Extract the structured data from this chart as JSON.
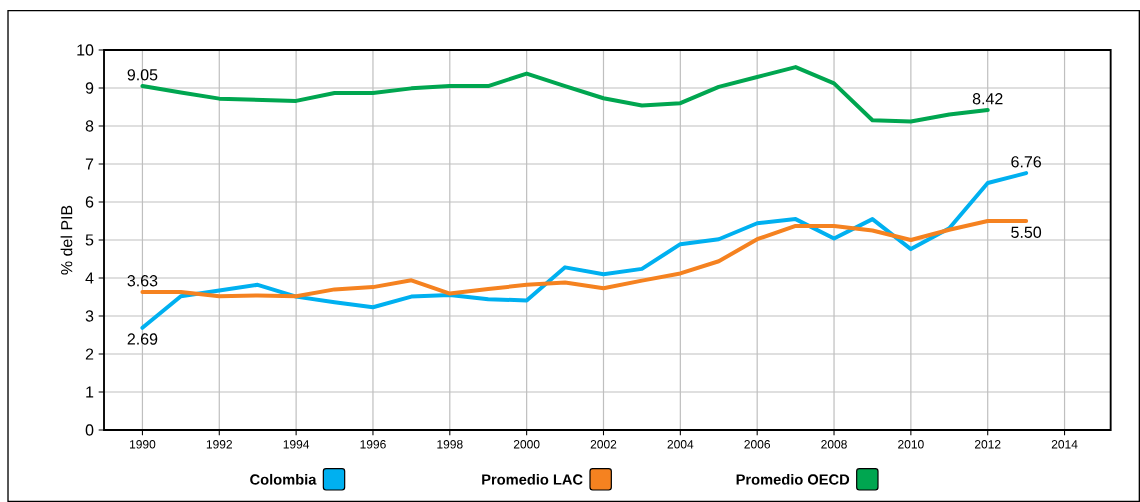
{
  "chart_data": {
    "type": "line",
    "ylabel": "% del PIB",
    "x": [
      1990,
      1991,
      1992,
      1993,
      1994,
      1995,
      1996,
      1997,
      1998,
      1999,
      2000,
      2001,
      2002,
      2003,
      2004,
      2005,
      2006,
      2007,
      2008,
      2009,
      2010,
      2011,
      2012,
      2013
    ],
    "series": [
      {
        "name": "Colombia",
        "color": "#00b0f0",
        "values": [
          2.69,
          3.52,
          3.67,
          3.82,
          3.51,
          3.36,
          3.23,
          3.51,
          3.55,
          3.44,
          3.41,
          4.28,
          4.1,
          4.24,
          4.89,
          5.02,
          5.44,
          5.55,
          5.04,
          5.55,
          4.76,
          5.31,
          6.5,
          6.76
        ]
      },
      {
        "name": "Promedio LAC",
        "color": "#f58220",
        "values": [
          3.63,
          3.63,
          3.52,
          3.54,
          3.52,
          3.7,
          3.76,
          3.94,
          3.59,
          3.71,
          3.82,
          3.88,
          3.73,
          3.93,
          4.12,
          4.44,
          5.02,
          5.37,
          5.37,
          5.25,
          5.0,
          5.27,
          5.5,
          5.5
        ]
      },
      {
        "name": "Promedio OECD",
        "color": "#00a650",
        "values": [
          9.05,
          8.88,
          8.72,
          8.69,
          8.66,
          8.87,
          8.87,
          8.99,
          9.05,
          9.05,
          9.38,
          9.05,
          8.73,
          8.54,
          8.6,
          9.03,
          9.29,
          9.55,
          9.12,
          8.15,
          8.12,
          8.3,
          8.42,
          null
        ]
      }
    ],
    "annotations": [
      {
        "text": "9.05",
        "x": 1990,
        "y": 9.05
      },
      {
        "text": "3.63",
        "x": 1990,
        "y": 3.63
      },
      {
        "text": "2.69",
        "x": 1990,
        "y": 2.69
      },
      {
        "text": "8.42",
        "x": 2012,
        "y": 8.42
      },
      {
        "text": "6.76",
        "x": 2013,
        "y": 6.76
      },
      {
        "text": "5.50",
        "x": 2013,
        "y": 5.5
      }
    ],
    "xlim": [
      1989,
      2015.2
    ],
    "xticks": [
      1990,
      1992,
      1994,
      1996,
      1998,
      2000,
      2002,
      2004,
      2006,
      2008,
      2010,
      2012,
      2014
    ],
    "ylim": [
      0,
      10
    ],
    "yticks": [
      0,
      1,
      2,
      3,
      4,
      5,
      6,
      7,
      8,
      9,
      10
    ],
    "grid": true,
    "legend": "bottom",
    "marker": "none",
    "line_style": "solid"
  }
}
